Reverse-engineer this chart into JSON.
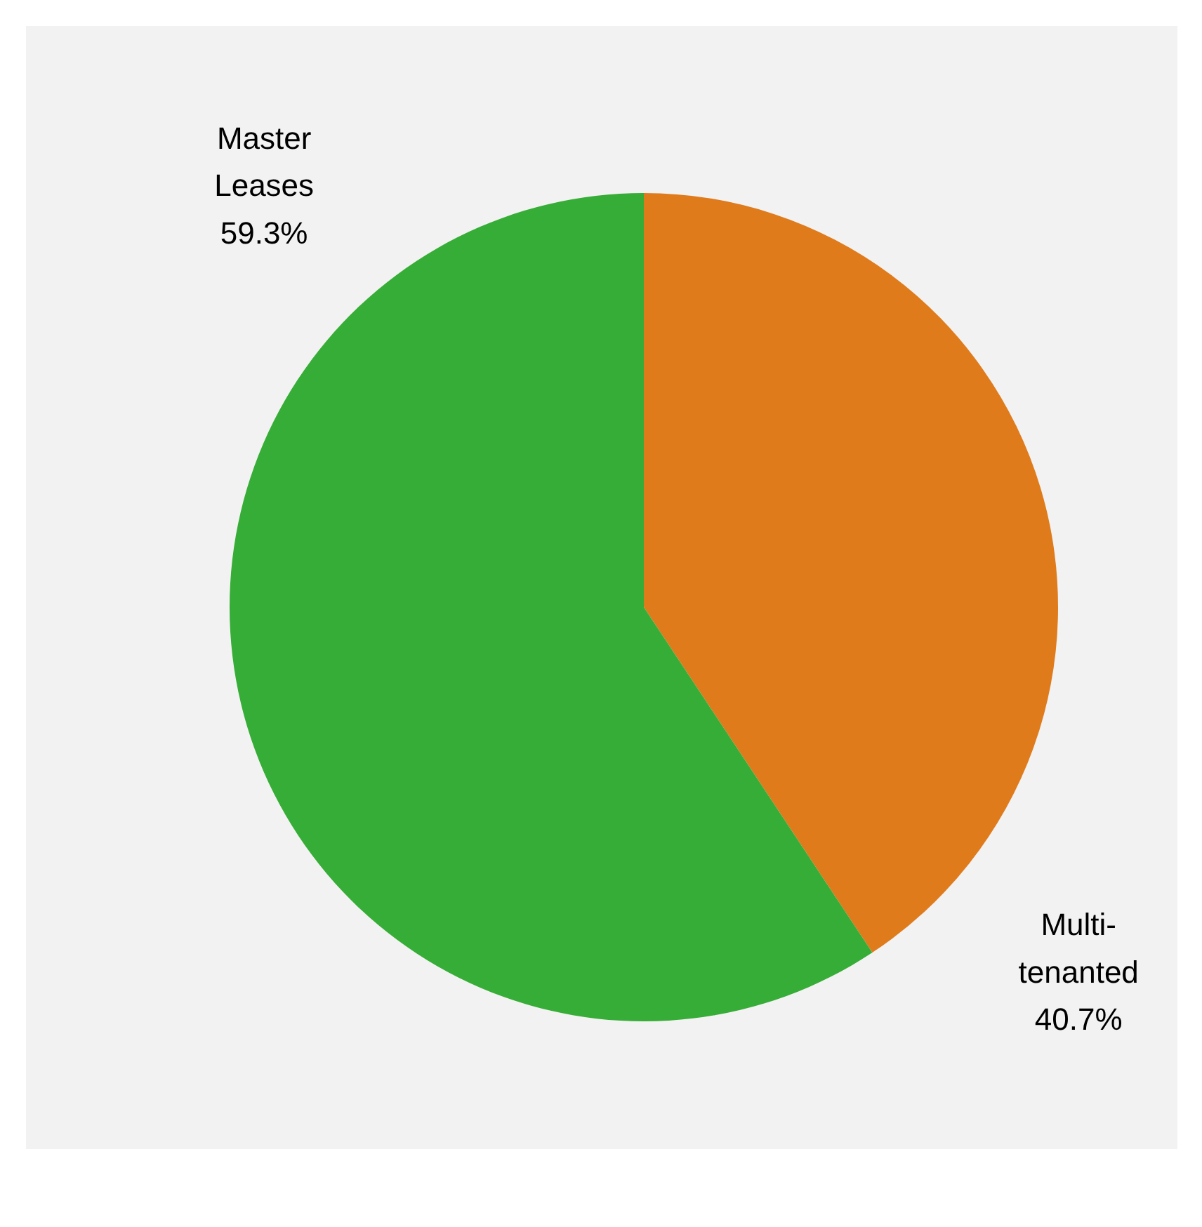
{
  "chart_data": {
    "type": "pie",
    "categories": [
      "Multi-tenanted",
      "Master Leases"
    ],
    "values": [
      40.7,
      59.3
    ],
    "colors": [
      "#e07b1c",
      "#36ad36"
    ],
    "value_labels": [
      "40.7%",
      "59.3%"
    ]
  }
}
